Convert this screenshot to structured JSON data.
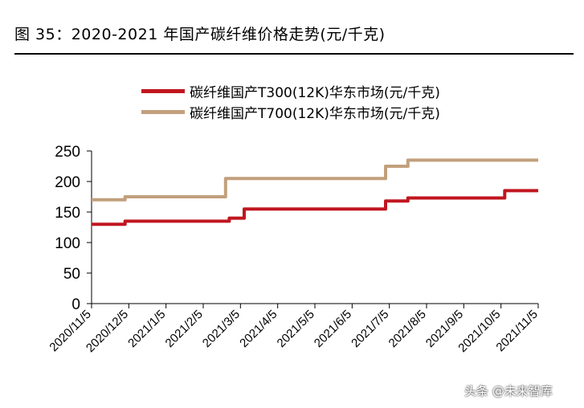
{
  "figure": {
    "title": "图 35：2020-2021 年国产碳纤维价格走势(元/千克)"
  },
  "watermark": "头条 @未来智库",
  "colors": {
    "t300": "#c0161f",
    "t700": "#c2a07c",
    "axis": "#000000"
  },
  "chart_data": {
    "type": "line",
    "title": "图 35：2020-2021 年国产碳纤维价格走势(元/千克)",
    "xlabel": "",
    "ylabel": "",
    "ylim": [
      0,
      250
    ],
    "yticks": [
      0,
      50,
      100,
      150,
      200,
      250
    ],
    "ytick_labels": [
      "0",
      "50",
      "100",
      "150",
      "200",
      "250"
    ],
    "xlim": [
      0,
      12
    ],
    "xticks": [
      0,
      1,
      2,
      3,
      4,
      5,
      6,
      7,
      8,
      9,
      10,
      11,
      12
    ],
    "xtick_labels": [
      "2020/11/5",
      "2020/12/5",
      "2021/1/5",
      "2021/2/5",
      "2021/3/5",
      "2021/4/5",
      "2021/5/5",
      "2021/6/5",
      "2021/7/5",
      "2021/8/5",
      "2021/9/5",
      "2021/10/5",
      "2021/11/5"
    ],
    "x_unit": "months since 2020/11/5",
    "legend_position": "top",
    "series": [
      {
        "name": "碳纤维国产T300(12K)华东市场(元/千克)",
        "color_key": "t300",
        "points": [
          [
            0,
            130
          ],
          [
            0.9,
            130
          ],
          [
            0.9,
            135
          ],
          [
            3.7,
            135
          ],
          [
            3.7,
            140
          ],
          [
            4.1,
            140
          ],
          [
            4.1,
            155
          ],
          [
            7.9,
            155
          ],
          [
            7.9,
            168
          ],
          [
            8.5,
            168
          ],
          [
            8.5,
            173
          ],
          [
            11.1,
            173
          ],
          [
            11.1,
            185
          ],
          [
            12,
            185
          ]
        ]
      },
      {
        "name": "碳纤维国产T700(12K)华东市场(元/千克)",
        "color_key": "t700",
        "points": [
          [
            0,
            170
          ],
          [
            0.9,
            170
          ],
          [
            0.9,
            175
          ],
          [
            3.6,
            175
          ],
          [
            3.6,
            205
          ],
          [
            7.9,
            205
          ],
          [
            7.9,
            225
          ],
          [
            8.5,
            225
          ],
          [
            8.5,
            235
          ],
          [
            12,
            235
          ]
        ]
      }
    ]
  }
}
